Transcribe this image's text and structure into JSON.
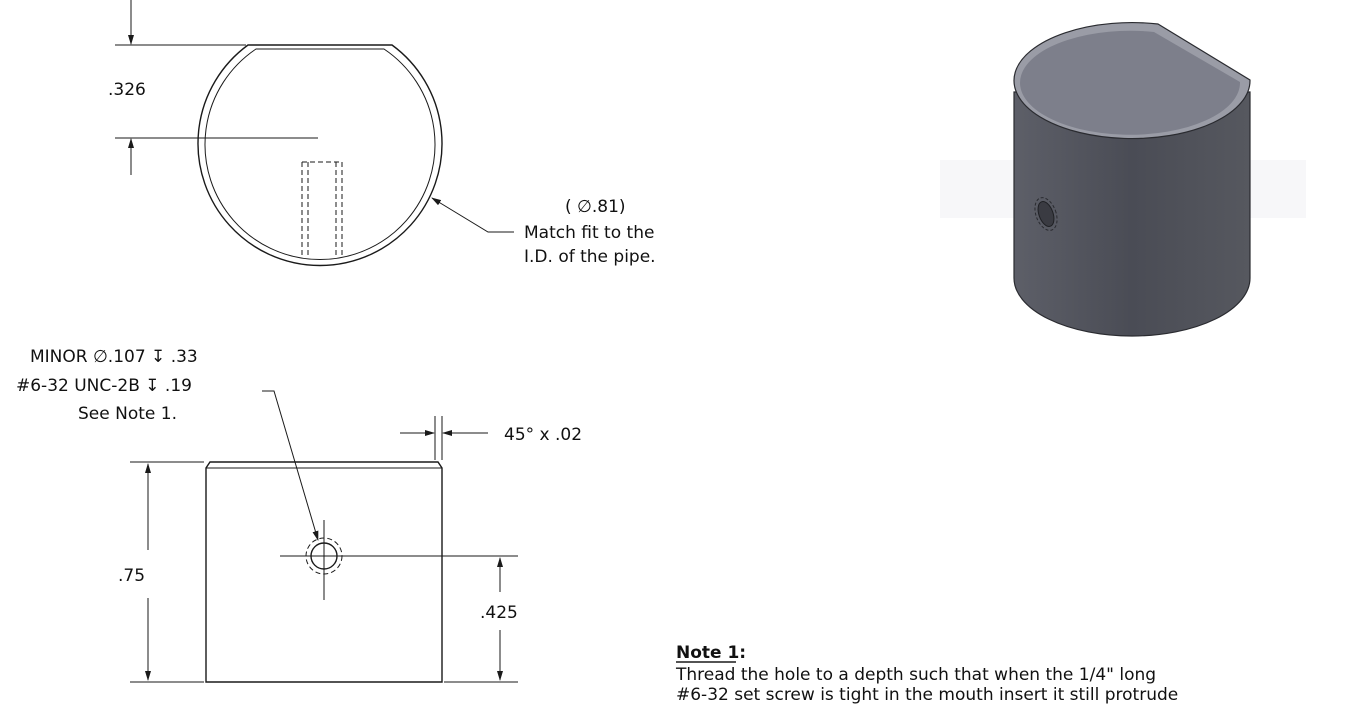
{
  "top_view": {
    "dim_flat_height": ".326",
    "diameter_callout": "( ∅.81)",
    "fit_note_line1": "Match fit to the",
    "fit_note_line2": "I.D. of the pipe."
  },
  "front_view": {
    "hole_callout_line1": "MINOR ∅.107 ↧ .33",
    "hole_callout_line2": "#6-32 UNC-2B ↧ .19",
    "hole_callout_line3": "See Note 1.",
    "chamfer_callout": "45° x .02",
    "dim_height": ".75",
    "dim_hole_height": ".425"
  },
  "note": {
    "title": "Note 1:",
    "line1": "Thread the hole to a depth such that when the 1/4\" long",
    "line2": "#6-32 set screw is tight in the mouth insert it still protrude"
  },
  "colors": {
    "line": "#1a1a1a",
    "iso_top": "#7d7f8b",
    "iso_side": "#4e5059",
    "iso_rim": "#9a9ca6"
  }
}
